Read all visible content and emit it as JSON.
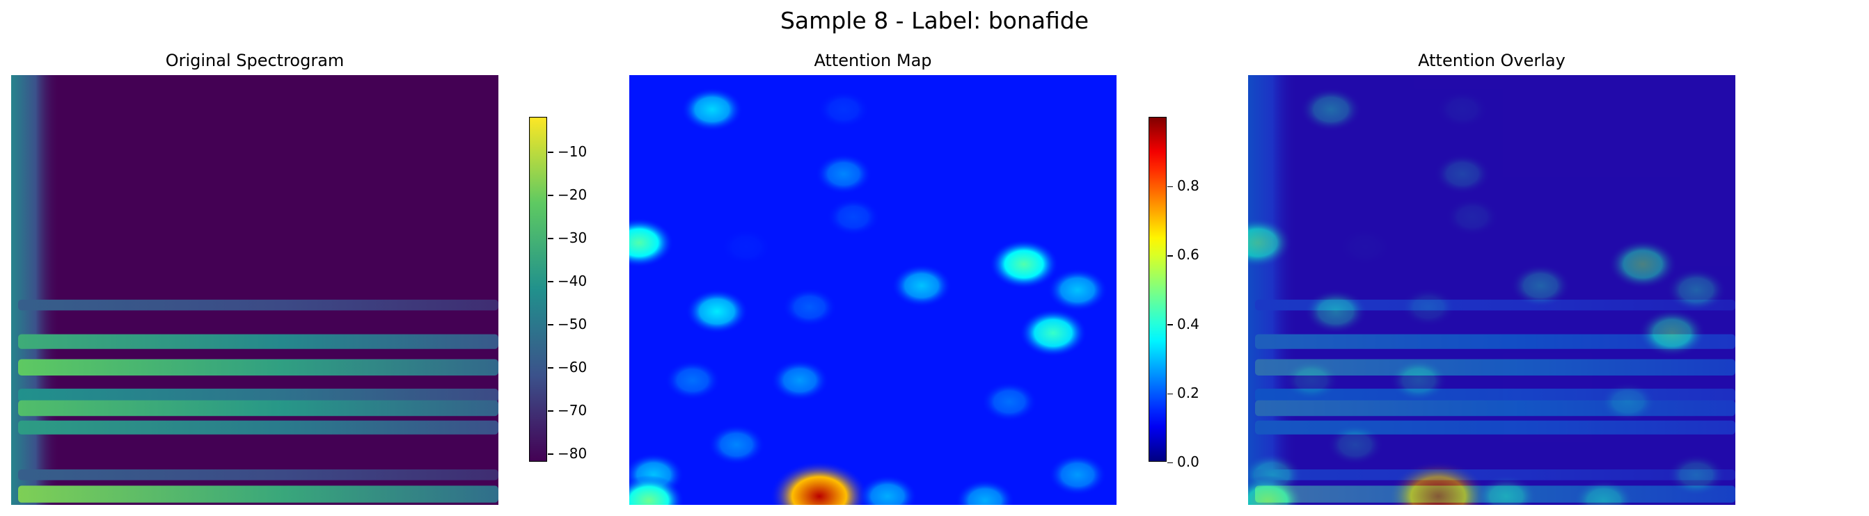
{
  "figure": {
    "suptitle": "Sample 8 - Label: bonafide"
  },
  "chart_data": [
    {
      "type": "heatmap",
      "title": "Original Spectrogram",
      "colormap": "viridis",
      "colorbar": {
        "range": [
          -82,
          -2
        ],
        "ticks": [
          -10,
          -20,
          -30,
          -40,
          -50,
          -60,
          -70,
          -80
        ],
        "tick_labels": [
          "−10",
          "−20",
          "−30",
          "−40",
          "−50",
          "−60",
          "−70",
          "−80"
        ]
      },
      "axes_visible": false,
      "bands": [
        {
          "y": 0.535,
          "level": 0.3
        },
        {
          "y": 0.62,
          "level": 0.62
        },
        {
          "y": 0.68,
          "level": 0.75
        },
        {
          "y": 0.745,
          "level": 0.5
        },
        {
          "y": 0.775,
          "level": 0.7
        },
        {
          "y": 0.82,
          "level": 0.55
        },
        {
          "y": 0.93,
          "level": 0.3
        },
        {
          "y": 0.975,
          "level": 0.8
        }
      ],
      "background_level": 0.0
    },
    {
      "type": "heatmap",
      "title": "Attention Map",
      "colormap": "jet",
      "colorbar": {
        "range": [
          0,
          1
        ],
        "ticks": [
          0.0,
          0.2,
          0.4,
          0.6,
          0.8
        ],
        "tick_labels": [
          "0.0",
          "0.2",
          "0.4",
          "0.6",
          "0.8"
        ]
      },
      "axes_visible": false,
      "base_level": 0.13,
      "hotspots": [
        {
          "x": 0.17,
          "y": 0.08,
          "value": 0.32
        },
        {
          "x": 0.44,
          "y": 0.08,
          "value": 0.16
        },
        {
          "x": 0.44,
          "y": 0.23,
          "value": 0.24
        },
        {
          "x": 0.46,
          "y": 0.33,
          "value": 0.18
        },
        {
          "x": 0.02,
          "y": 0.39,
          "value": 0.45
        },
        {
          "x": 0.24,
          "y": 0.4,
          "value": 0.14
        },
        {
          "x": 0.81,
          "y": 0.44,
          "value": 0.45
        },
        {
          "x": 0.6,
          "y": 0.49,
          "value": 0.3
        },
        {
          "x": 0.92,
          "y": 0.5,
          "value": 0.3
        },
        {
          "x": 0.37,
          "y": 0.54,
          "value": 0.2
        },
        {
          "x": 0.18,
          "y": 0.55,
          "value": 0.34
        },
        {
          "x": 0.87,
          "y": 0.6,
          "value": 0.42
        },
        {
          "x": 0.13,
          "y": 0.71,
          "value": 0.22
        },
        {
          "x": 0.35,
          "y": 0.71,
          "value": 0.26
        },
        {
          "x": 0.78,
          "y": 0.76,
          "value": 0.22
        },
        {
          "x": 0.22,
          "y": 0.86,
          "value": 0.24
        },
        {
          "x": 0.05,
          "y": 0.93,
          "value": 0.3
        },
        {
          "x": 0.04,
          "y": 0.99,
          "value": 0.48
        },
        {
          "x": 0.39,
          "y": 0.98,
          "value": 0.95
        },
        {
          "x": 0.53,
          "y": 0.98,
          "value": 0.28
        },
        {
          "x": 0.73,
          "y": 0.99,
          "value": 0.28
        },
        {
          "x": 0.92,
          "y": 0.93,
          "value": 0.26
        }
      ]
    },
    {
      "type": "heatmap",
      "title": "Attention Overlay",
      "composition": "spectrogram (viridis) blended with attention map (jet)",
      "axes_visible": false
    }
  ]
}
